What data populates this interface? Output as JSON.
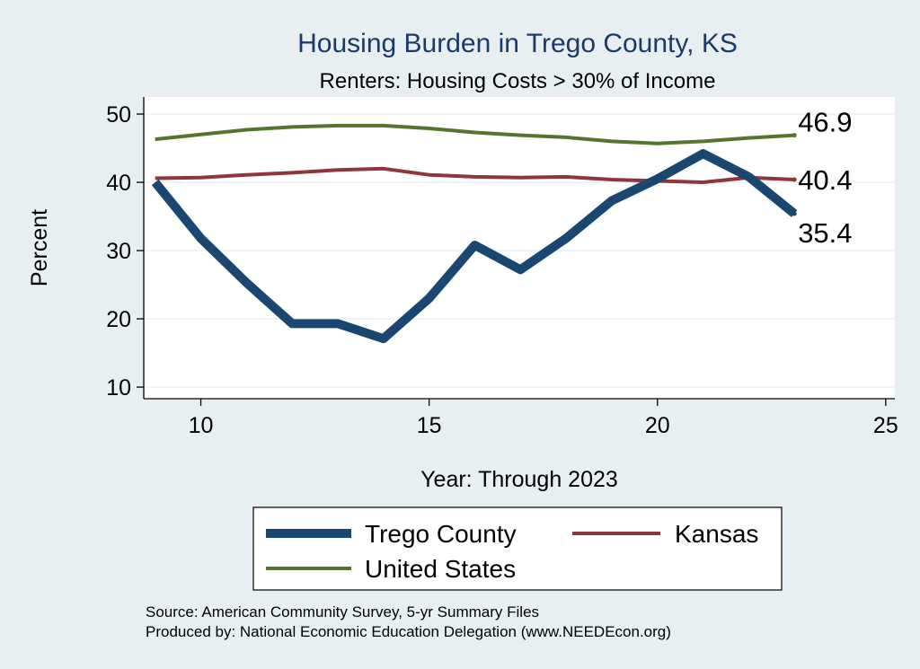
{
  "chart_data": {
    "type": "line",
    "title": "Housing Burden in Trego County, KS",
    "subtitle": "Renters: Housing Costs > 30% of Income",
    "xlabel": "Year: Through 2023",
    "ylabel": "Percent",
    "xlim": [
      8.75,
      25.2
    ],
    "ylim": [
      8.3,
      52.5
    ],
    "xticks": [
      10,
      15,
      20,
      25
    ],
    "yticks": [
      10,
      20,
      30,
      40,
      50
    ],
    "grid": true,
    "legend_position": "bottom",
    "series": [
      {
        "name": "Trego County",
        "color": "#1a476f",
        "x": [
          9,
          10,
          11,
          12,
          13,
          14,
          15,
          16,
          17,
          18,
          19,
          20,
          21,
          22,
          23
        ],
        "values": [
          40.0,
          31.8,
          25.3,
          19.3,
          19.3,
          17.1,
          23.0,
          30.8,
          27.2,
          31.8,
          37.3,
          40.5,
          44.2,
          40.8,
          35.4
        ],
        "end_label": "35.4"
      },
      {
        "name": "Kansas",
        "color": "#90353b",
        "x": [
          9,
          10,
          11,
          12,
          13,
          14,
          15,
          16,
          17,
          18,
          19,
          20,
          21,
          22,
          23
        ],
        "values": [
          40.6,
          40.7,
          41.1,
          41.4,
          41.8,
          42.0,
          41.1,
          40.8,
          40.7,
          40.8,
          40.4,
          40.2,
          40.0,
          40.7,
          40.4
        ],
        "end_label": "40.4"
      },
      {
        "name": "United States",
        "color": "#55752f",
        "x": [
          9,
          10,
          11,
          12,
          13,
          14,
          15,
          16,
          17,
          18,
          19,
          20,
          21,
          22,
          23
        ],
        "values": [
          46.3,
          47.0,
          47.7,
          48.1,
          48.3,
          48.3,
          47.9,
          47.3,
          46.9,
          46.6,
          46.0,
          45.7,
          46.0,
          46.5,
          46.9
        ],
        "end_label": "46.9"
      }
    ]
  },
  "source": {
    "line1": "Source: American Community Survey, 5-yr Summary Files",
    "line2": "Produced by: National Economic Education Delegation (www.NEEDEcon.org)"
  }
}
